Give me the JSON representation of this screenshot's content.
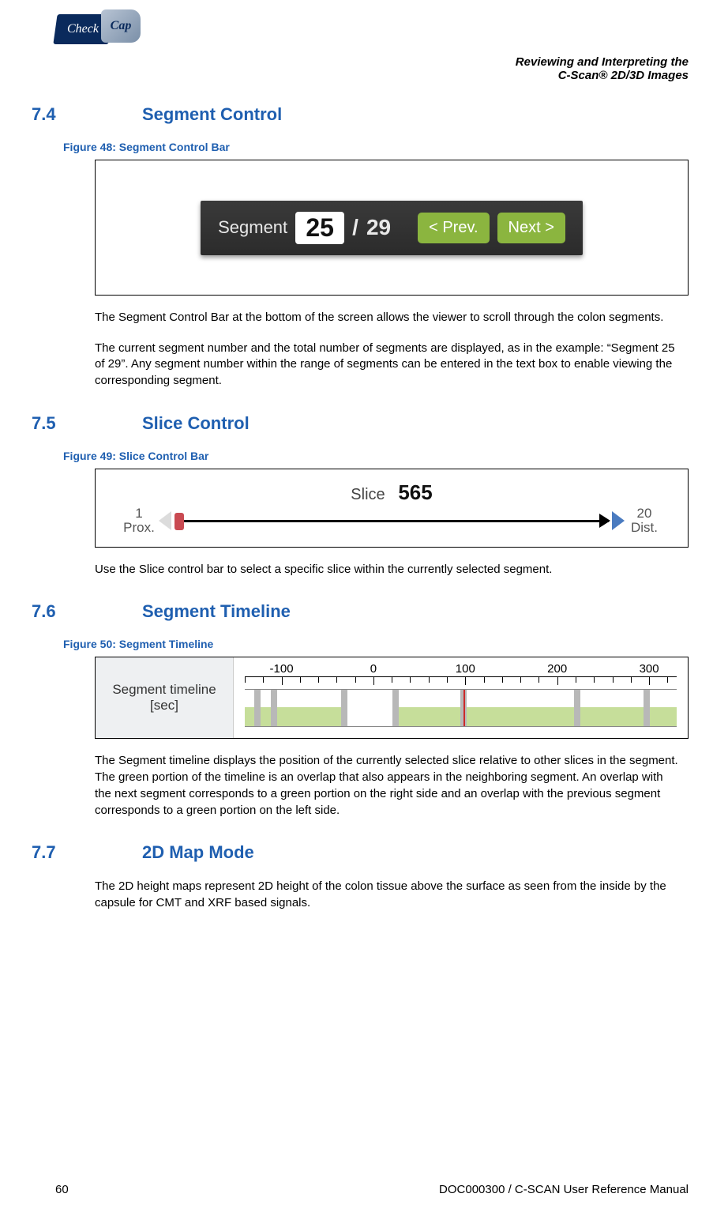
{
  "logo": {
    "left": "Check",
    "right": "Cap"
  },
  "header": {
    "line1": "Reviewing and Interpreting the",
    "line2": "C-Scan® 2D/3D Images"
  },
  "sections": {
    "s74": {
      "num": "7.4",
      "title": "Segment Control"
    },
    "s75": {
      "num": "7.5",
      "title": "Slice Control"
    },
    "s76": {
      "num": "7.6",
      "title": "Segment Timeline"
    },
    "s77": {
      "num": "7.7",
      "title": "2D Map Mode"
    }
  },
  "figures": {
    "f48": "Figure 48: Segment Control Bar",
    "f49": "Figure 49: Slice Control Bar",
    "f50": "Figure 50: Segment Timeline"
  },
  "segment_bar": {
    "label": "Segment",
    "current": "25",
    "slash": "/",
    "total": "29",
    "prev": "< Prev.",
    "next": "Next >",
    "colors": {
      "bg": "#2f2f2f",
      "btn": "#8bb53f",
      "btn_text": "#ffffff",
      "input_bg": "#ffffff"
    }
  },
  "paragraphs": {
    "p1": "The Segment Control Bar at the bottom of the screen allows the viewer to scroll through the colon segments.",
    "p2": "The current segment number and the total number of segments are displayed, as in the example: “Segment 25 of 29”. Any segment number within the range of segments can be entered in the text box to enable viewing the corresponding segment.",
    "p3": "Use the Slice control bar to select a specific slice within the currently selected segment.",
    "p4": "The Segment timeline displays the position of the currently selected slice relative to other slices in the segment. The green portion of the timeline is an overlap that also appears in the neighboring segment. An overlap with the next segment corresponds to a green portion on the right side and an overlap with the previous segment corresponds to a green portion on the left side.",
    "p5": "The 2D height maps represent 2D height of the colon tissue above the surface as seen from the inside by the capsule for CMT and XRF based signals."
  },
  "slice": {
    "label": "Slice",
    "value": "565",
    "left_num": "1",
    "left_label": "Prox.",
    "right_num": "20",
    "right_label": "Dist.",
    "handle_color": "#c94a52",
    "right_arrow_color": "#4a7bc0"
  },
  "timeline": {
    "left_line1": "Segment timeline",
    "left_line2": "[sec]",
    "ticks": [
      -100,
      0,
      100,
      200,
      300
    ],
    "range": [
      -140,
      330
    ],
    "green_segments": [
      [
        -140,
        -32
      ],
      [
        24,
        330
      ]
    ],
    "gray_markers": [
      -126,
      -108,
      -32,
      24,
      98,
      222,
      297
    ],
    "red_marker": 98,
    "colors": {
      "green": "#c6de9a",
      "gray": "#b8b8b8",
      "red": "#cc2a2a",
      "left_bg": "#eef0f2"
    }
  },
  "footer": {
    "page": "60",
    "docref": "DOC000300 / C-SCAN User Reference Manual"
  }
}
